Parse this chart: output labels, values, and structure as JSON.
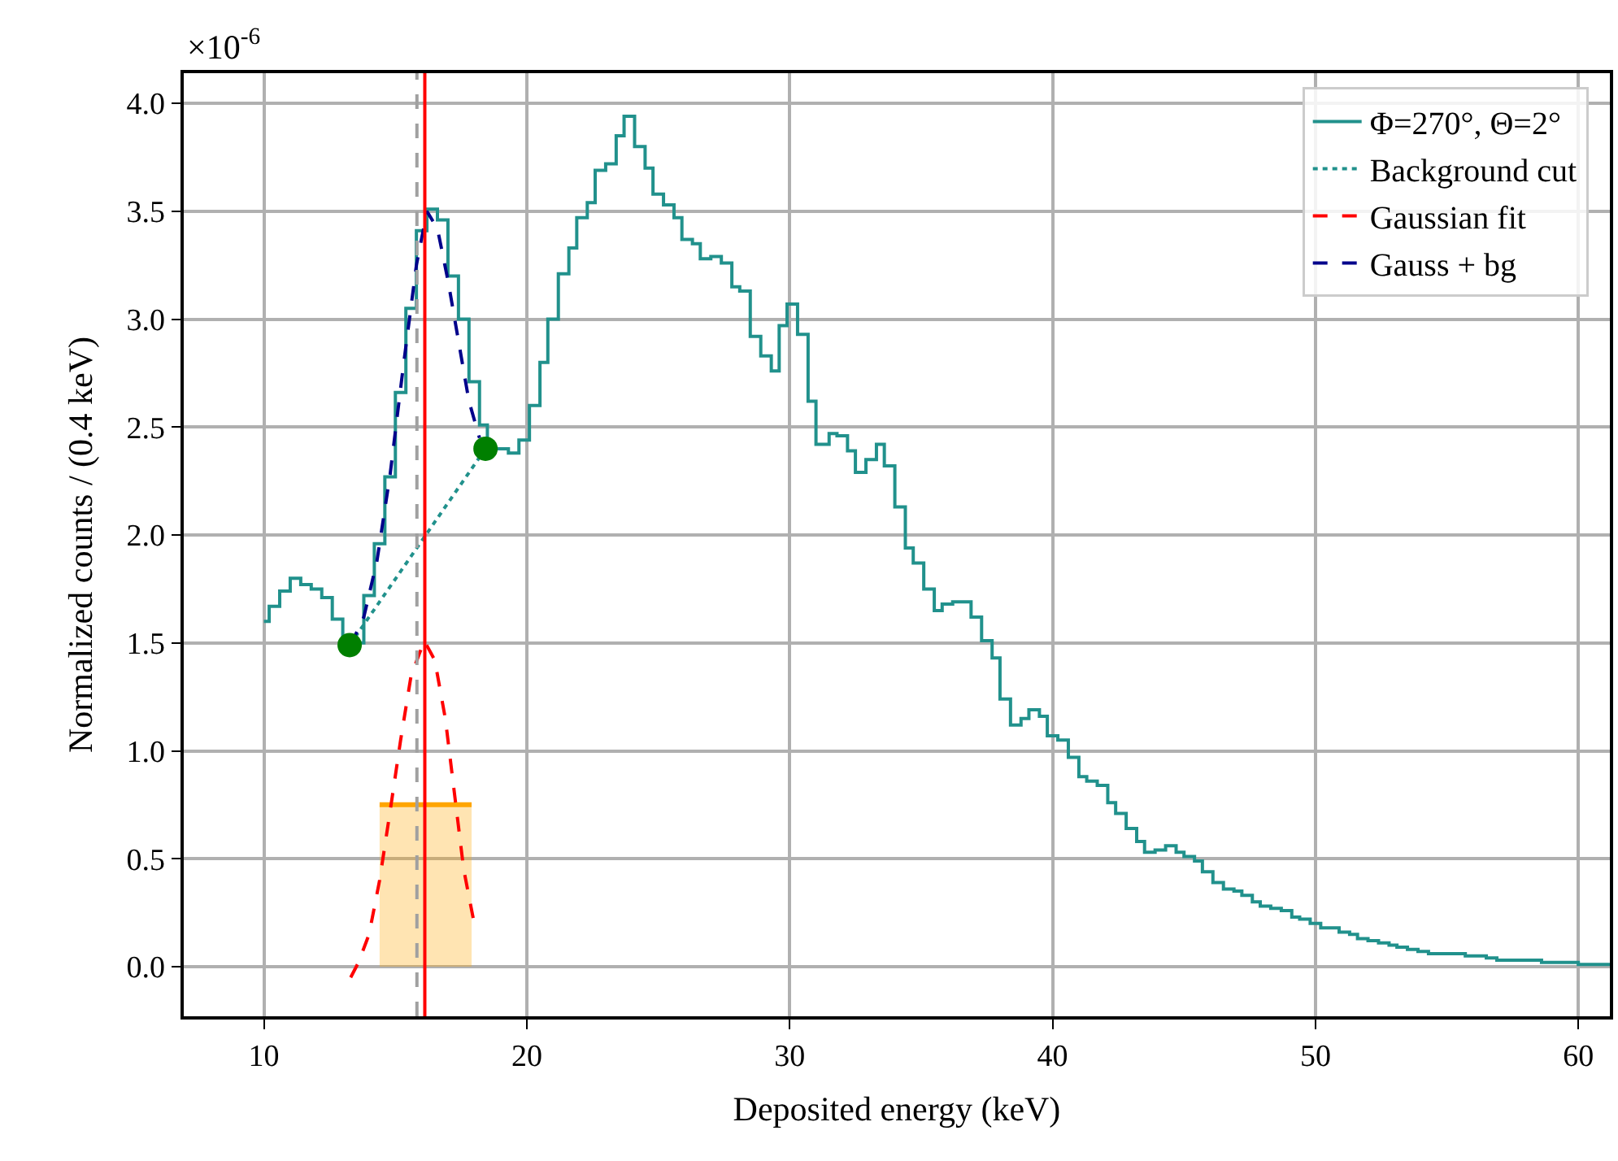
{
  "chart_data": {
    "type": "step",
    "xlabel": "Deposited energy (keV)",
    "ylabel": "Normalized counts / (0.4 keV)",
    "annotations": [
      "×10$^{-6}$"
    ],
    "xlim": [
      6.95,
      61.2
    ],
    "xticks": [
      10,
      20,
      30,
      40,
      50,
      60
    ],
    "ylim": [
      -0.23,
      4.14
    ],
    "yticks": [
      {
        "value": 0,
        "label": "0.0"
      },
      {
        "value": 0.5,
        "label": "0.5"
      },
      {
        "value": 1,
        "label": "1.0"
      },
      {
        "value": 1.5,
        "label": "1.5"
      },
      {
        "value": 2,
        "label": "2.0"
      },
      {
        "value": 2.5,
        "label": "2.5"
      },
      {
        "value": 3,
        "label": "3.0"
      },
      {
        "value": 3.5,
        "label": "3.5"
      },
      {
        "value": 4,
        "label": "4.0"
      }
    ],
    "grid": true,
    "legend": "top right",
    "ref_lines": [
      {
        "axis": "x",
        "value": 15.82,
        "color": "#a0a0a0",
        "line_style": "dashed"
      },
      {
        "axis": "x",
        "value": 16.12,
        "color": "#ff0000",
        "line_style": "solid"
      }
    ],
    "series": [
      {
        "type": "area",
        "color": "#ffa500",
        "x": [
          14.4,
          17.9
        ],
        "values": [
          0.75,
          0.75
        ]
      },
      {
        "name": "Φ=270°, Θ=2°",
        "color": "#21918c",
        "x": [
          10.0,
          10.2,
          10.6,
          11.0,
          11.4,
          11.8,
          12.2,
          12.6,
          13.0,
          13.4,
          13.8,
          14.2,
          14.6,
          15.0,
          15.4,
          15.8,
          16.2,
          16.6,
          17.0,
          17.4,
          17.8,
          18.2,
          18.5,
          19.3,
          19.7,
          20.1,
          20.5,
          20.8,
          21.2,
          21.6,
          21.9,
          22.3,
          22.6,
          23.0,
          23.4,
          23.7,
          24.1,
          24.5,
          24.8,
          25.2,
          25.6,
          25.9,
          26.3,
          26.6,
          27.0,
          27.4,
          27.8,
          28.1,
          28.5,
          28.9,
          29.3,
          29.6,
          29.9,
          30.3,
          30.7,
          31.0,
          31.5,
          31.8,
          32.2,
          32.5,
          32.9,
          33.3,
          33.6,
          34.0,
          34.4,
          34.7,
          35.1,
          35.5,
          35.8,
          36.2,
          36.6,
          36.9,
          37.3,
          37.7,
          38.0,
          38.4,
          38.8,
          39.1,
          39.5,
          39.8,
          40.2,
          40.6,
          41.0,
          41.3,
          41.7,
          42.1,
          42.4,
          42.8,
          43.2,
          43.5,
          43.9,
          44.3,
          44.7,
          45.0,
          45.4,
          45.7,
          46.1,
          46.5,
          46.9,
          47.2,
          47.6,
          47.9,
          48.3,
          48.7,
          49.1,
          49.4,
          49.8,
          50.2,
          50.6,
          50.9,
          51.3,
          51.6,
          52.0,
          52.4,
          52.8,
          53.1,
          53.5,
          53.9,
          54.3,
          55.0,
          55.7,
          56.5,
          56.9,
          57.2,
          58.2,
          58.6,
          59.1,
          60.0,
          61.2
        ],
        "values": [
          1.6,
          1.67,
          1.74,
          1.8,
          1.77,
          1.75,
          1.71,
          1.61,
          1.52,
          1.5,
          1.72,
          1.96,
          2.27,
          2.66,
          3.05,
          3.41,
          3.51,
          3.46,
          3.2,
          3.0,
          2.71,
          2.51,
          2.4,
          2.38,
          2.44,
          2.6,
          2.8,
          3.0,
          3.21,
          3.33,
          3.47,
          3.54,
          3.69,
          3.72,
          3.85,
          3.94,
          3.8,
          3.7,
          3.58,
          3.53,
          3.47,
          3.37,
          3.35,
          3.28,
          3.29,
          3.26,
          3.15,
          3.13,
          2.92,
          2.83,
          2.76,
          2.97,
          3.07,
          2.93,
          2.62,
          2.42,
          2.47,
          2.46,
          2.39,
          2.29,
          2.35,
          2.42,
          2.32,
          2.13,
          1.94,
          1.87,
          1.75,
          1.65,
          1.68,
          1.69,
          1.69,
          1.62,
          1.51,
          1.43,
          1.24,
          1.12,
          1.15,
          1.19,
          1.16,
          1.07,
          1.05,
          0.97,
          0.88,
          0.86,
          0.84,
          0.76,
          0.71,
          0.64,
          0.58,
          0.53,
          0.54,
          0.56,
          0.53,
          0.51,
          0.49,
          0.44,
          0.39,
          0.36,
          0.35,
          0.33,
          0.3,
          0.28,
          0.27,
          0.26,
          0.23,
          0.22,
          0.2,
          0.18,
          0.18,
          0.16,
          0.15,
          0.13,
          0.12,
          0.11,
          0.1,
          0.09,
          0.08,
          0.07,
          0.06,
          0.06,
          0.05,
          0.04,
          0.03,
          0.03,
          0.03,
          0.02,
          0.02,
          0.01,
          0.01
        ]
      },
      {
        "name": "Background cut",
        "type": "line",
        "line_style": "dotted",
        "color": "#21918c",
        "x": [
          13.26,
          18.43
        ],
        "values": [
          1.49,
          2.4
        ]
      },
      {
        "name": "Gaussian fit",
        "type": "line",
        "line_style": "dashed",
        "color": "#ff0000",
        "x": [
          13.3,
          13.6,
          14.0,
          14.4,
          14.8,
          15.2,
          15.6,
          16.1,
          16.5,
          16.9,
          17.3,
          17.6,
          18.0
        ],
        "values": [
          -0.05,
          0.02,
          0.15,
          0.4,
          0.72,
          1.05,
          1.35,
          1.51,
          1.42,
          1.15,
          0.75,
          0.45,
          0.2
        ]
      },
      {
        "name": "Gauss + bg",
        "type": "line",
        "line_style": "dashed",
        "color": "#00008b",
        "x": [
          13.3,
          13.8,
          14.3,
          14.8,
          15.3,
          15.8,
          16.2,
          16.6,
          17.0,
          17.4,
          17.8,
          18.2
        ],
        "values": [
          1.49,
          1.62,
          1.88,
          2.28,
          2.78,
          3.25,
          3.5,
          3.42,
          3.18,
          2.9,
          2.62,
          2.45
        ]
      },
      {
        "type": "scatter",
        "marker": "circle",
        "color": "#007f00",
        "x": [
          13.26,
          18.43
        ],
        "values": [
          1.49,
          2.4
        ]
      }
    ]
  }
}
